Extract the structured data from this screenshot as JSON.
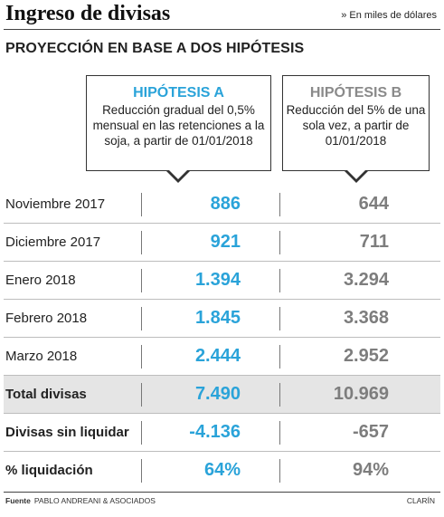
{
  "header": {
    "title": "Ingreso de divisas",
    "units": "» En miles de dólares",
    "subtitle": "PROYECCIÓN EN BASE A DOS HIPÓTESIS"
  },
  "hypotheses": [
    {
      "name": "HIPÓTESIS A",
      "description": "Reducción gradual del 0,5% mensual en las retenciones a la soja, a partir de 01/01/2018"
    },
    {
      "name": "HIPÓTESIS B",
      "description": "Reducción del 5% de una sola vez, a partir de 01/01/2018"
    }
  ],
  "rows": [
    {
      "label": "Noviembre 2017",
      "a": "886",
      "b": "644"
    },
    {
      "label": "Diciembre 2017",
      "a": "921",
      "b": "711"
    },
    {
      "label": "Enero 2018",
      "a": "1.394",
      "b": "3.294"
    },
    {
      "label": "Febrero 2018",
      "a": "1.845",
      "b": "3.368"
    },
    {
      "label": "Marzo 2018",
      "a": "2.444",
      "b": "2.952"
    },
    {
      "label": "Total divisas",
      "a": "7.490",
      "b": "10.969"
    },
    {
      "label": "Divisas sin liquidar",
      "a": "-4.136",
      "b": "-657"
    },
    {
      "label": "% liquidación",
      "a": "64%",
      "b": "94%"
    }
  ],
  "footer": {
    "source_label": "Fuente",
    "source": "PABLO ANDREANI & ASOCIADOS",
    "brand": "CLARÍN"
  },
  "colors": {
    "hypothesis_a": "#2aa3d9",
    "hypothesis_b": "#7d7d7d",
    "total_row_bg": "#e5e5e5"
  },
  "chart_data": {
    "type": "table",
    "title": "Ingreso de divisas",
    "subtitle": "PROYECCIÓN EN BASE A DOS HIPÓTESIS",
    "units": "» En miles de dólares",
    "columns": [
      "HIPÓTESIS A",
      "HIPÓTESIS B"
    ],
    "categories": [
      "Noviembre 2017",
      "Diciembre 2017",
      "Enero 2018",
      "Febrero 2018",
      "Marzo 2018",
      "Total divisas",
      "Divisas sin liquidar",
      "% liquidación"
    ],
    "series": [
      {
        "name": "HIPÓTESIS A",
        "values": [
          886,
          921,
          1394,
          1845,
          2444,
          7490,
          -4136,
          64
        ]
      },
      {
        "name": "HIPÓTESIS B",
        "values": [
          644,
          711,
          3294,
          3368,
          2952,
          10969,
          -657,
          94
        ]
      }
    ]
  }
}
